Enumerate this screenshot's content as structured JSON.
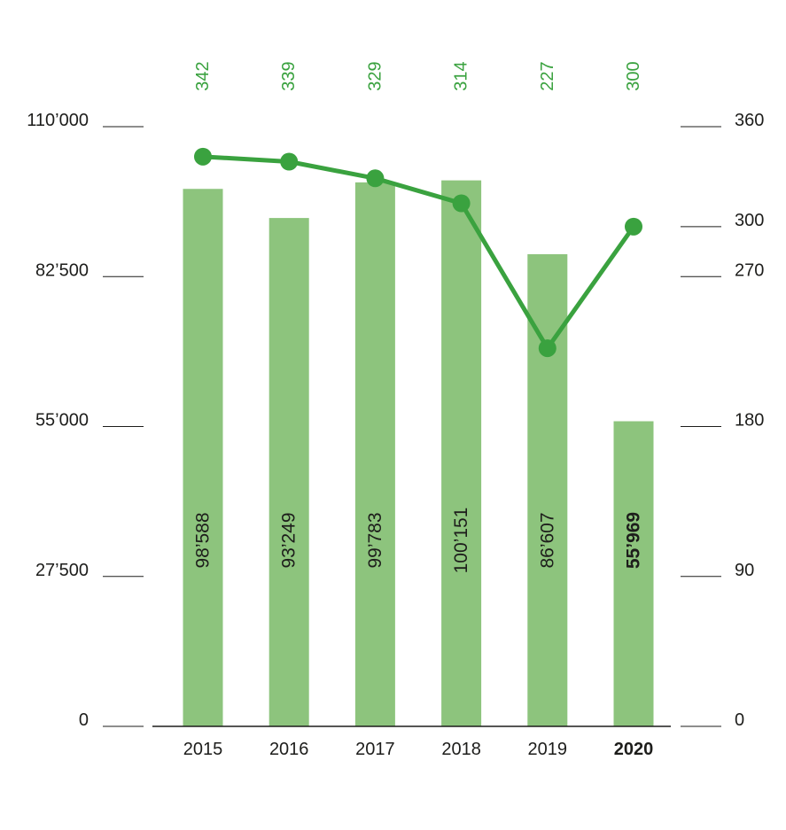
{
  "chart_data": {
    "type": "bar",
    "categories": [
      "2015",
      "2016",
      "2017",
      "2018",
      "2019",
      "2020"
    ],
    "highlight_category": "2020",
    "series": [
      {
        "type": "bar",
        "axis": "left",
        "values": [
          98588,
          93249,
          99783,
          100151,
          86607,
          55969
        ],
        "labels": [
          "98’588",
          "93’249",
          "99’783",
          "100’151",
          "86’607",
          "55’969"
        ]
      },
      {
        "type": "line",
        "axis": "right",
        "values": [
          342,
          339,
          329,
          314,
          227,
          300
        ],
        "labels": [
          "342",
          "339",
          "329",
          "314",
          "227",
          "300"
        ]
      }
    ],
    "left_axis": {
      "ylim": [
        0,
        110000
      ],
      "ticks": [
        0,
        27500,
        55000,
        82500,
        110000
      ],
      "tick_labels": [
        "0",
        "27’500",
        "55’000",
        "82’500",
        "110’000"
      ]
    },
    "right_axis": {
      "ylim": [
        0,
        360
      ],
      "ticks": [
        0,
        90,
        180,
        270,
        300,
        360
      ],
      "tick_labels": [
        "0",
        "90",
        "180",
        "270",
        "300",
        "360"
      ]
    },
    "colors": {
      "bar": "#8dc47d",
      "line": "#3aa23f",
      "text": "#1d1d1b",
      "axis": "#1d1d1b"
    }
  }
}
